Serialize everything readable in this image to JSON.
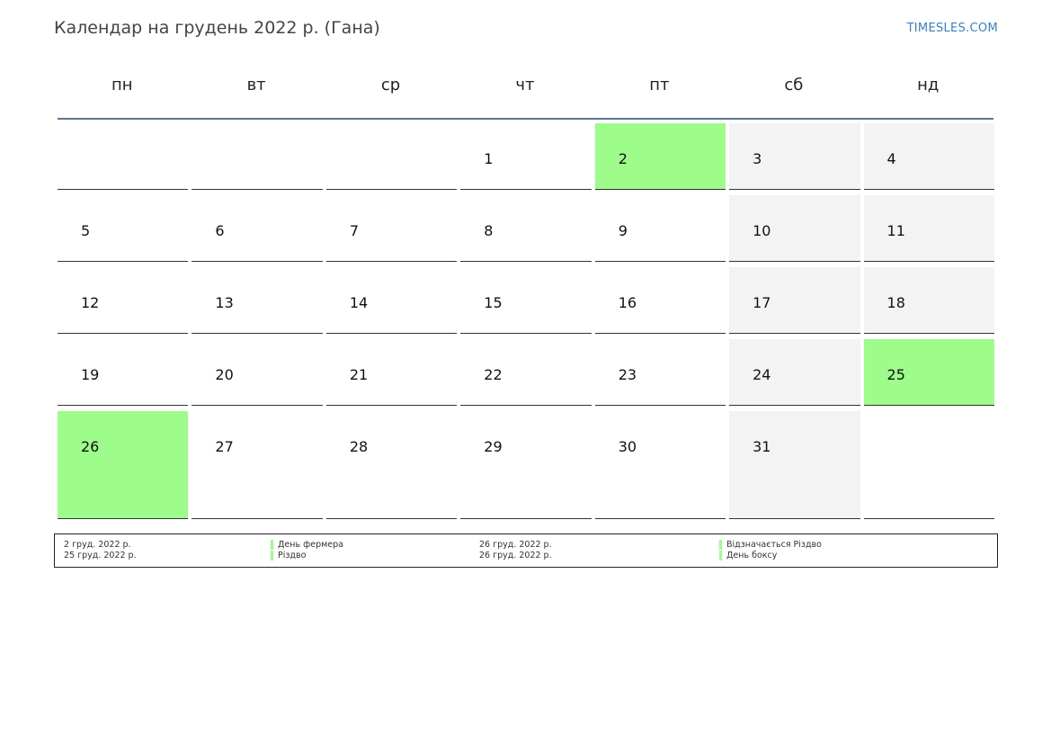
{
  "page": {
    "title": "Календар на грудень 2022 р. (Гана)",
    "brand": "TIMESLES.COM"
  },
  "colors": {
    "holiday": "#9efc8a",
    "weekend": "#f3f3f3",
    "header_rule": "#5d7593",
    "brand": "#3a7fc1"
  },
  "weekdays": [
    "пн",
    "вт",
    "ср",
    "чт",
    "пт",
    "сб",
    "нд"
  ],
  "weeks": [
    [
      {
        "day": "",
        "type": "empty"
      },
      {
        "day": "",
        "type": "empty"
      },
      {
        "day": "",
        "type": "empty"
      },
      {
        "day": "1",
        "type": "normal"
      },
      {
        "day": "2",
        "type": "holiday"
      },
      {
        "day": "3",
        "type": "weekend"
      },
      {
        "day": "4",
        "type": "weekend"
      }
    ],
    [
      {
        "day": "5",
        "type": "normal"
      },
      {
        "day": "6",
        "type": "normal"
      },
      {
        "day": "7",
        "type": "normal"
      },
      {
        "day": "8",
        "type": "normal"
      },
      {
        "day": "9",
        "type": "normal"
      },
      {
        "day": "10",
        "type": "weekend"
      },
      {
        "day": "11",
        "type": "weekend"
      }
    ],
    [
      {
        "day": "12",
        "type": "normal"
      },
      {
        "day": "13",
        "type": "normal"
      },
      {
        "day": "14",
        "type": "normal"
      },
      {
        "day": "15",
        "type": "normal"
      },
      {
        "day": "16",
        "type": "normal"
      },
      {
        "day": "17",
        "type": "weekend"
      },
      {
        "day": "18",
        "type": "weekend"
      }
    ],
    [
      {
        "day": "19",
        "type": "normal"
      },
      {
        "day": "20",
        "type": "normal"
      },
      {
        "day": "21",
        "type": "normal"
      },
      {
        "day": "22",
        "type": "normal"
      },
      {
        "day": "23",
        "type": "normal"
      },
      {
        "day": "24",
        "type": "weekend"
      },
      {
        "day": "25",
        "type": "holiday"
      }
    ],
    [
      {
        "day": "26",
        "type": "holiday"
      },
      {
        "day": "27",
        "type": "normal"
      },
      {
        "day": "28",
        "type": "normal"
      },
      {
        "day": "29",
        "type": "normal"
      },
      {
        "day": "30",
        "type": "normal"
      },
      {
        "day": "31",
        "type": "weekend"
      },
      {
        "day": "",
        "type": "empty"
      }
    ]
  ],
  "legend": [
    {
      "date": "2 груд. 2022 р.",
      "name": "День фермера"
    },
    {
      "date": "25 груд. 2022 р.",
      "name": "Різдво"
    },
    {
      "date": "26 груд. 2022 р.",
      "name": "Відзначається Різдво"
    },
    {
      "date": "26 груд. 2022 р.",
      "name": "День боксу"
    }
  ]
}
